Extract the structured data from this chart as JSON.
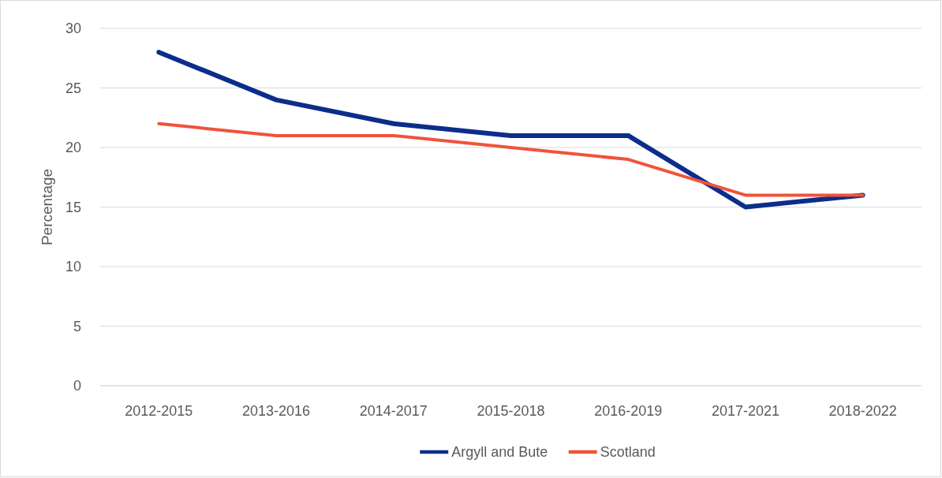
{
  "chart_data": {
    "type": "line",
    "ylabel": "Percentage",
    "categories": [
      "2012-2015",
      "2013-2016",
      "2014-2017",
      "2015-2018",
      "2016-2019",
      "2017-2021",
      "2018-2022"
    ],
    "series": [
      {
        "name": "Argyll and Bute",
        "color": "#0b2d8c",
        "values": [
          28,
          24,
          22,
          21,
          21,
          15,
          16
        ]
      },
      {
        "name": "Scotland",
        "color": "#f0533a",
        "values": [
          22,
          21,
          21,
          20,
          19,
          16,
          16
        ]
      }
    ],
    "ylim": [
      0,
      30
    ],
    "yticks": [
      0,
      5,
      10,
      15,
      20,
      25,
      30
    ],
    "grid": "y",
    "legend": "bottom",
    "marker": "none",
    "line_style": "solid"
  }
}
